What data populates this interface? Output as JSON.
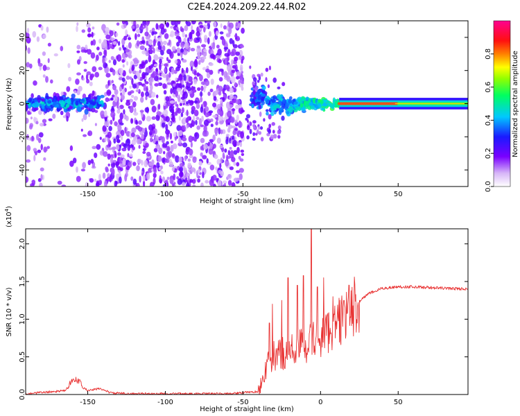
{
  "title": "C2E4.2024.209.22.44.R02",
  "chart_data": [
    {
      "type": "heatmap",
      "xlabel": "Height of straight line (km)",
      "ylabel": "Frequency (Hz)",
      "xlim": [
        -190,
        95
      ],
      "ylim": [
        -50,
        50
      ],
      "xticks": [
        -150,
        -100,
        -50,
        0,
        50
      ],
      "yticks": [
        -40,
        -20,
        0,
        20,
        40
      ],
      "colorbar": {
        "label": "Normalized spectral amplitude",
        "range": [
          0,
          1
        ],
        "ticks": [
          0.0,
          0.2,
          0.4,
          0.6,
          0.8
        ]
      },
      "regions": [
        {
          "x_range": [
            -190,
            -140
          ],
          "pattern": "noise + strong band near 0 Hz"
        },
        {
          "x_range": [
            -140,
            -50
          ],
          "pattern": "dense broadband noise"
        },
        {
          "x_range": [
            -45,
            15
          ],
          "pattern": "signal emerging near 0 Hz"
        },
        {
          "x_range": [
            15,
            95
          ],
          "pattern": "strong narrow line at 0 Hz, amplitude ~0.8"
        }
      ]
    },
    {
      "type": "line",
      "xlabel": "Height of straight line (km)",
      "ylabel": "SNR (10 * v/v)",
      "ymultiplier": "(x10",
      "ymultiplier_exp": "4",
      "ymultiplier_close": ")",
      "xlim": [
        -190,
        95
      ],
      "ylim": [
        0,
        2.2
      ],
      "xticks": [
        -150,
        -100,
        -50,
        0,
        50
      ],
      "yticks": [
        0.0,
        0.5,
        1.0,
        1.5,
        2.0
      ],
      "series_color": "#e83030",
      "envelope": {
        "x": [
          -190,
          -165,
          -158,
          -150,
          -142,
          -135,
          -120,
          -100,
          -60,
          -40,
          -35,
          -30,
          -20,
          -10,
          0,
          10,
          20,
          30,
          40,
          50,
          60,
          70,
          80,
          95
        ],
        "y": [
          0.01,
          0.05,
          0.17,
          0.05,
          0.08,
          0.02,
          0.01,
          0.01,
          0.01,
          0.04,
          0.35,
          0.5,
          0.58,
          0.66,
          0.77,
          0.92,
          1.13,
          1.33,
          1.41,
          1.43,
          1.43,
          1.42,
          1.41,
          1.4
        ]
      },
      "spikes": [
        {
          "x": -33,
          "y": 0.95
        },
        {
          "x": -31,
          "y": 1.2
        },
        {
          "x": -25,
          "y": 1.25
        },
        {
          "x": -21,
          "y": 1.55
        },
        {
          "x": -15,
          "y": 1.45
        },
        {
          "x": -11,
          "y": 1.58
        },
        {
          "x": -6,
          "y": 2.2
        },
        {
          "x": -2,
          "y": 1.43
        },
        {
          "x": 2,
          "y": 1.55
        },
        {
          "x": 8,
          "y": 1.3
        },
        {
          "x": 15,
          "y": 1.25
        }
      ]
    }
  ]
}
